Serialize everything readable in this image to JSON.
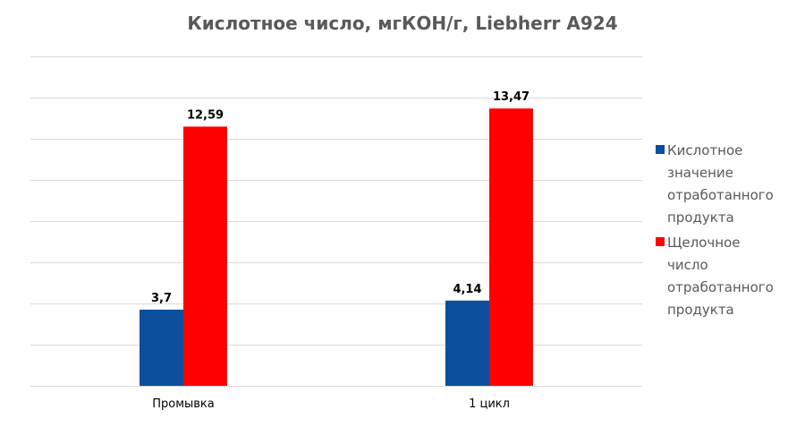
{
  "chart_data": {
    "type": "bar",
    "title": "Кислотное число, мгКОН/г, Liebherr A924",
    "categories": [
      "Промывка",
      "1 цикл"
    ],
    "series": [
      {
        "name": "Кислотное значение отработанного продукта",
        "values": [
          3.7,
          4.14
        ],
        "labels": [
          "3,7",
          "4,14"
        ],
        "color": "#0b4e9c"
      },
      {
        "name": "Щелочное число отработанного продукта",
        "values": [
          12.59,
          13.47
        ],
        "labels": [
          "12,59",
          "13,47"
        ],
        "color": "#ff0000"
      }
    ],
    "ylim": [
      0,
      16
    ],
    "grid": true,
    "legend_position": "right"
  }
}
